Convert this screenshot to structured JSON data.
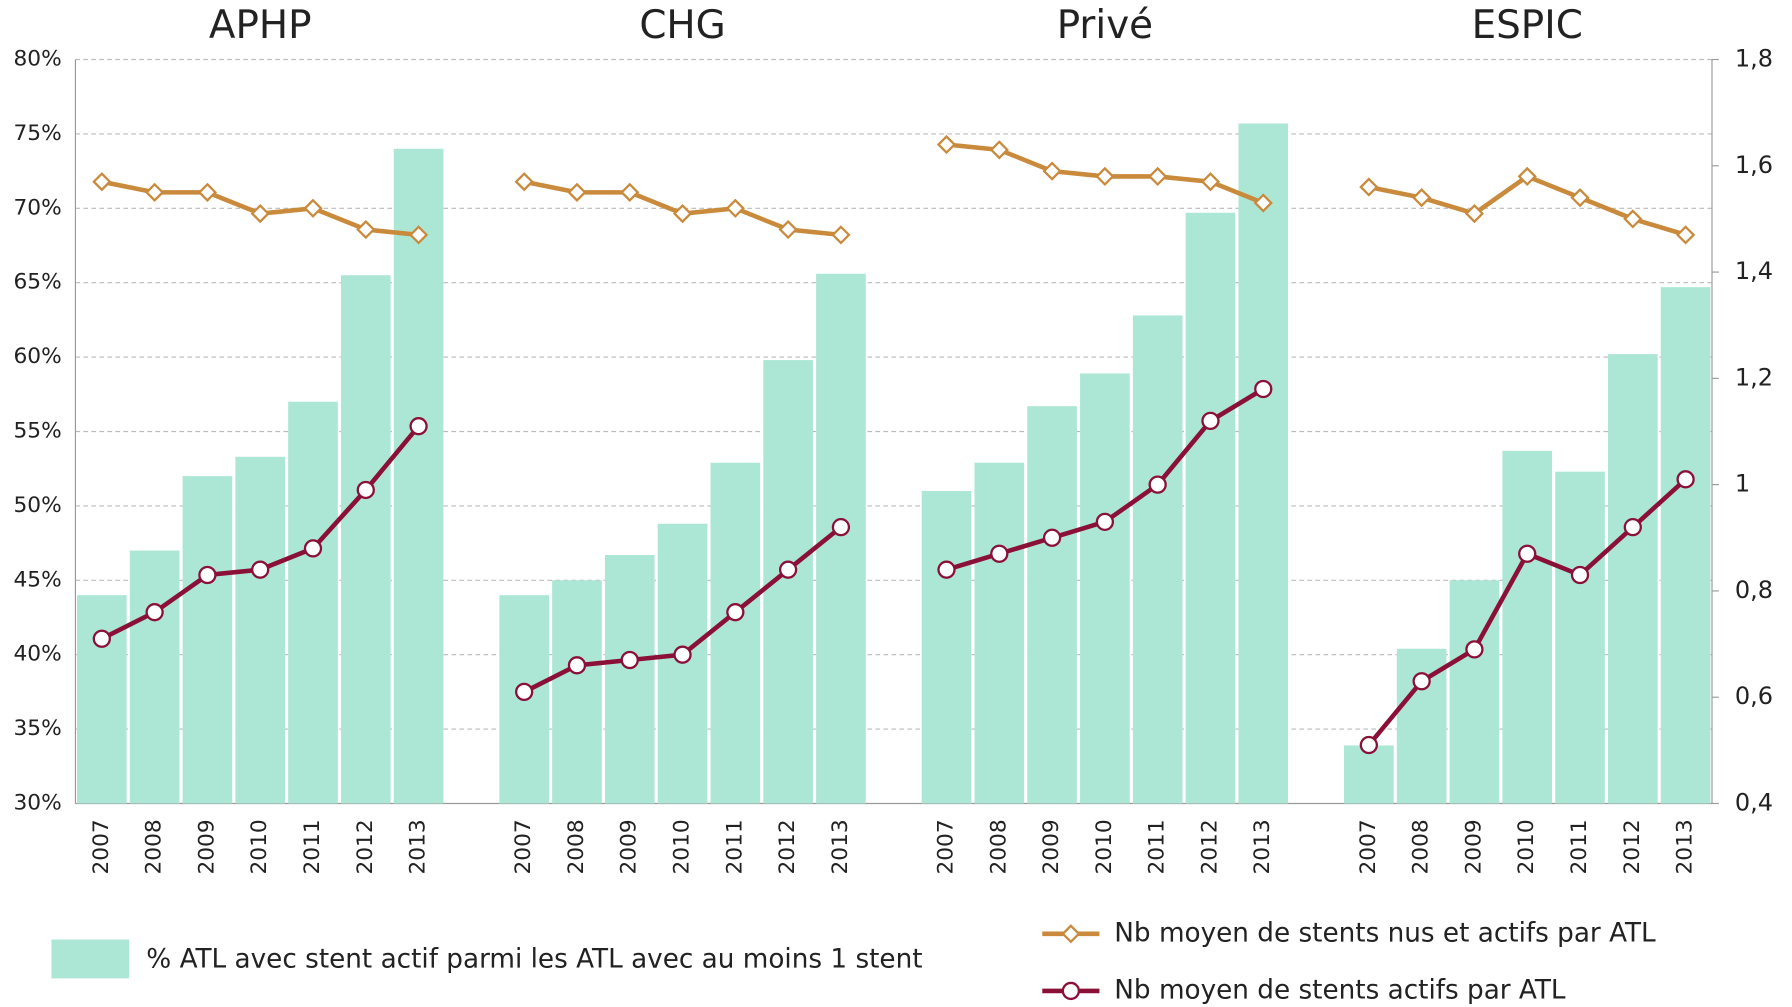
{
  "chart_data": {
    "type": "bar",
    "groups": [
      "APHP",
      "CHG",
      "Privé",
      "ESPIC"
    ],
    "categories": [
      "2007",
      "2008",
      "2009",
      "2010",
      "2011",
      "2012",
      "2013",
      "2007",
      "2008",
      "2009",
      "2010",
      "2011",
      "2012",
      "2013",
      "2007",
      "2008",
      "2009",
      "2010",
      "2011",
      "2012",
      "2013",
      "2007",
      "2008",
      "2009",
      "2010",
      "2011",
      "2012",
      "2013"
    ],
    "series": [
      {
        "name": "% ATL avec stent actif parmi les ATL avec au moins 1 stent",
        "type": "bar",
        "color": "#ace6d4",
        "values": [
          44,
          47,
          52,
          53.3,
          57,
          65.5,
          74,
          44,
          45,
          46.7,
          48.8,
          52.9,
          59.8,
          65.6,
          51,
          52.9,
          56.7,
          58.9,
          62.8,
          69.7,
          75.7,
          33.9,
          40.4,
          45,
          53.7,
          52.3,
          60.2,
          64.7
        ]
      },
      {
        "name": "Nb moyen de stents nus et actifs par ATL",
        "type": "line",
        "marker": "diamond",
        "axis": "y2",
        "color": "#c98a3c",
        "values": [
          1.57,
          1.55,
          1.55,
          1.51,
          1.52,
          1.48,
          1.47,
          1.57,
          1.55,
          1.55,
          1.51,
          1.52,
          1.48,
          1.47,
          1.64,
          1.63,
          1.59,
          1.58,
          1.58,
          1.57,
          1.53,
          1.56,
          1.54,
          1.51,
          1.58,
          1.54,
          1.5,
          1.47
        ]
      },
      {
        "name": "Nb moyen de stents actifs par ATL",
        "type": "line",
        "marker": "circle",
        "axis": "y2",
        "color": "#8b1038",
        "values": [
          0.71,
          0.76,
          0.83,
          0.84,
          0.88,
          0.99,
          1.11,
          0.61,
          0.66,
          0.67,
          0.68,
          0.76,
          0.84,
          0.92,
          0.84,
          0.87,
          0.9,
          0.93,
          1.0,
          1.12,
          1.18,
          0.51,
          0.63,
          0.69,
          0.87,
          0.83,
          0.92,
          1.01
        ]
      }
    ],
    "ylim": [
      30,
      80
    ],
    "yticks": [
      {
        "value": 30,
        "label": "30%"
      },
      {
        "value": 35,
        "label": "35%"
      },
      {
        "value": 40,
        "label": "40%"
      },
      {
        "value": 45,
        "label": "45%"
      },
      {
        "value": 50,
        "label": "50%"
      },
      {
        "value": 55,
        "label": "55%"
      },
      {
        "value": 60,
        "label": "60%"
      },
      {
        "value": 65,
        "label": "65%"
      },
      {
        "value": 70,
        "label": "70%"
      },
      {
        "value": 75,
        "label": "75%"
      },
      {
        "value": 80,
        "label": "80%"
      }
    ],
    "y2lim": [
      0.4,
      1.8
    ],
    "y2ticks": [
      {
        "value": 0.4,
        "label": "0,4"
      },
      {
        "value": 0.6,
        "label": "0,6"
      },
      {
        "value": 0.8,
        "label": "0,8"
      },
      1,
      {
        "value": 1.2,
        "label": "1,2"
      },
      {
        "value": 1.4,
        "label": "1,4"
      },
      {
        "value": 1.6,
        "label": "1,6"
      },
      {
        "value": 1.8,
        "label": "1,8"
      }
    ],
    "grid": true
  }
}
